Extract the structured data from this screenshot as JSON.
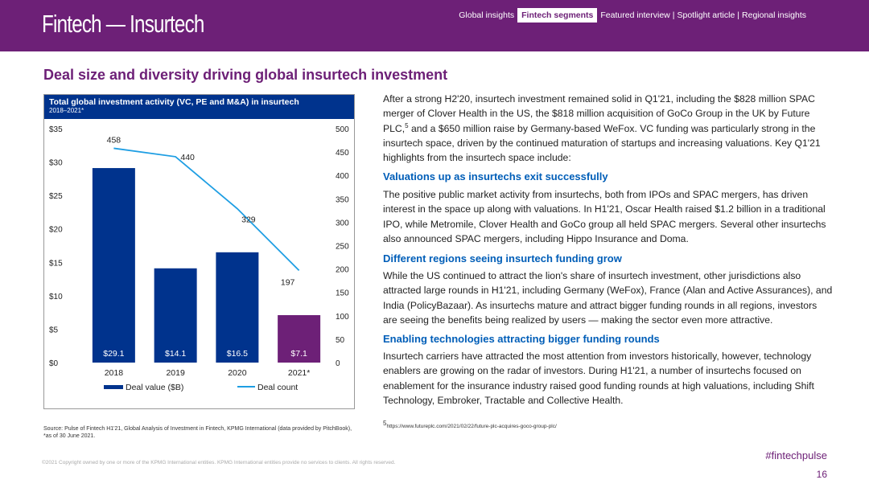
{
  "header": {
    "brand": "Fintech — Insurtech",
    "nav": {
      "item1": "Global insights",
      "active": "Fintech segments",
      "item2": "Featured interview",
      "sep1": "|",
      "item3": "Spotlight article",
      "sep2": "|",
      "item4": "Regional insights"
    }
  },
  "page_title": "Deal size and diversity driving global insurtech investment",
  "chart": {
    "title": "Total global investment activity (VC, PE and M&A) in insurtech",
    "subtitle": "2018–2021*"
  },
  "chart_data": {
    "type": "bar",
    "categories": [
      "2018",
      "2019",
      "2020",
      "2021*"
    ],
    "series": [
      {
        "name": "Deal value ($B)",
        "type": "bar",
        "axis": "left",
        "values": [
          29.1,
          14.1,
          16.5,
          7.1
        ],
        "labels": [
          "$29.1",
          "$14.1",
          "$16.5",
          "$7.1"
        ]
      },
      {
        "name": "Deal count",
        "type": "line",
        "axis": "right",
        "values": [
          458,
          440,
          329,
          197
        ],
        "labels": [
          "458",
          "440",
          "329",
          "197"
        ]
      }
    ],
    "bar_colors": [
      "#00338d",
      "#00338d",
      "#00338d",
      "#6d2077"
    ],
    "line_color": "#1e9ee3",
    "y_left": {
      "min": 0,
      "max": 35,
      "step": 5,
      "tick_labels": [
        "$0",
        "$5",
        "$10",
        "$15",
        "$20",
        "$25",
        "$30",
        "$35"
      ]
    },
    "y_right": {
      "min": 0,
      "max": 500,
      "step": 50,
      "tick_labels": [
        "0",
        "50",
        "100",
        "150",
        "200",
        "250",
        "300",
        "350",
        "400",
        "450",
        "500"
      ]
    },
    "legend": [
      "Deal value ($B)",
      "Deal count"
    ]
  },
  "intro": "After a strong H2'20, insurtech investment remained solid in Q1'21, including the $828 million SPAC merger of Clover Health in the US, the $818 million acquisition of GoCo Group in the UK by Future PLC,",
  "intro_sup": "5",
  "intro_rest": " and a $650 million raise by Germany-based WeFox. VC funding was particularly strong in the insurtech space, driven by the continued maturation of startups and increasing valuations. Key Q1'21 highlights from the insurtech space include:",
  "sections": [
    {
      "heading": "Valuations up as insurtechs exit successfully",
      "body": "The positive public market activity from insurtechs, both from IPOs and SPAC mergers, has driven interest in the space up along with valuations. In H1'21, Oscar Health raised $1.2 billion in a traditional IPO, while Metromile, Clover Health and GoCo group all held SPAC mergers. Several other insurtechs also announced SPAC mergers, including Hippo Insurance and Doma."
    },
    {
      "heading": "Different regions seeing insurtech funding grow",
      "body": "While the US continued to attract the lion's share of insurtech investment, other jurisdictions also attracted large rounds in H1'21, including Germany (WeFox), France (Alan and Active Assurances), and India (PolicyBazaar). As insurtechs mature and attract bigger funding rounds in all regions, investors are seeing the benefits being realized by users — making the sector even more attractive."
    },
    {
      "heading": "Enabling technologies attracting bigger funding rounds",
      "body": "Insurtech carriers have attracted the most attention from investors historically, however, technology enablers are growing on the radar of investors. During H1'21, a number of insurtechs focused on enablement for the insurance industry raised good funding rounds at high valuations, including Shift Technology, Embroker, Tractable and Collective Health."
    }
  ],
  "source": "Source: Pulse of Fintech H1'21, Global Analysis of Investment in Fintech, KPMG International (data provided by PitchBook), *as of 30 June 2021.",
  "footnote_sup": "5",
  "footnote": "https://www.futureplc.com/2021/02/22/future-plc-acquires-goco-group-plc/",
  "copyright": "©2021 Copyright owned by one or more of the KPMG International entities. KPMG International entities provide no services to clients. All rights reserved.",
  "hashtag": "#fintechpulse",
  "page_number": "16"
}
